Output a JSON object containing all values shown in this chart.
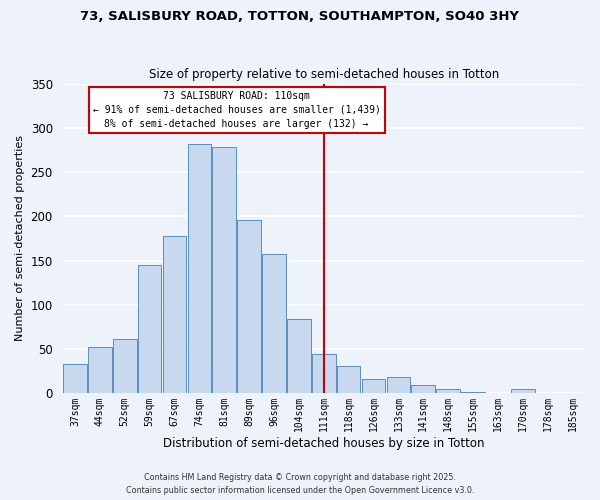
{
  "title1": "73, SALISBURY ROAD, TOTTON, SOUTHAMPTON, SO40 3HY",
  "title2": "Size of property relative to semi-detached houses in Totton",
  "xlabel": "Distribution of semi-detached houses by size in Totton",
  "ylabel": "Number of semi-detached properties",
  "bar_labels": [
    "37sqm",
    "44sqm",
    "52sqm",
    "59sqm",
    "67sqm",
    "74sqm",
    "81sqm",
    "89sqm",
    "96sqm",
    "104sqm",
    "111sqm",
    "118sqm",
    "126sqm",
    "133sqm",
    "141sqm",
    "148sqm",
    "155sqm",
    "163sqm",
    "170sqm",
    "178sqm",
    "185sqm"
  ],
  "bar_values": [
    33,
    52,
    62,
    145,
    178,
    282,
    278,
    196,
    158,
    84,
    45,
    31,
    16,
    18,
    9,
    5,
    2,
    0,
    5,
    1,
    0
  ],
  "bar_color": "#c8d8ef",
  "bar_edge_color": "#5a8fc2",
  "bg_color": "#eef2fa",
  "grid_color": "#ffffff",
  "vline_color": "#cc0000",
  "annotation_title": "73 SALISBURY ROAD: 110sqm",
  "annotation_line1": "← 91% of semi-detached houses are smaller (1,439)",
  "annotation_line2": "8% of semi-detached houses are larger (132) →",
  "annotation_box_color": "#ffffff",
  "annotation_box_edge": "#cc0000",
  "footnote1": "Contains HM Land Registry data © Crown copyright and database right 2025.",
  "footnote2": "Contains public sector information licensed under the Open Government Licence v3.0.",
  "ylim": [
    0,
    350
  ],
  "yticks": [
    0,
    50,
    100,
    150,
    200,
    250,
    300,
    350
  ]
}
